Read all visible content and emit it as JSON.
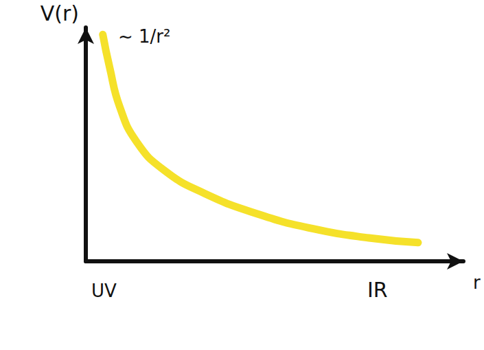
{
  "chart_data": {
    "type": "line",
    "x_label": "r",
    "y_label": "V(r)",
    "annotations": [
      "~ 1/r²",
      "UV",
      "IR"
    ],
    "x": [
      0.45,
      0.63,
      0.9,
      1.35,
      2.07,
      3.15,
      4.6,
      6.0,
      7.5,
      8.8
    ],
    "values": [
      9.7,
      8.3,
      6.6,
      5.1,
      3.9,
      2.9,
      2.0,
      1.4,
      1.0,
      0.8
    ],
    "color": "#f5e12a",
    "xlim": [
      0,
      10
    ],
    "ylim": [
      0,
      10
    ],
    "xticks": [],
    "yticks": [],
    "grid": false,
    "tick_labels": false
  }
}
